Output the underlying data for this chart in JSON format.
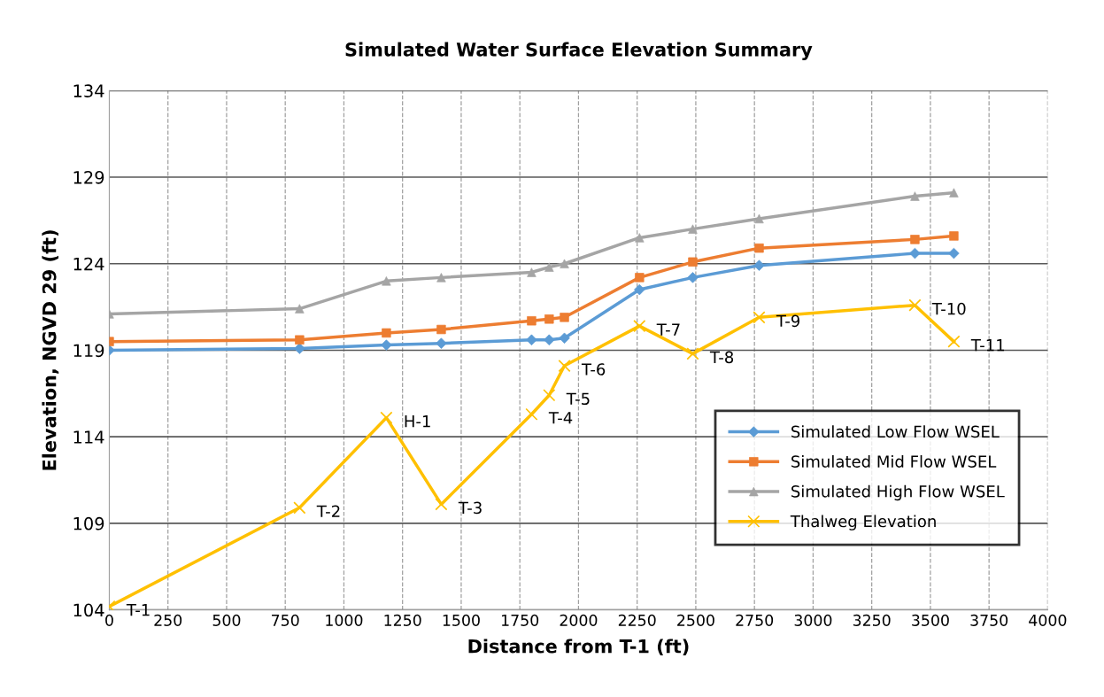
{
  "chart_data": {
    "type": "line",
    "title": "Simulated Water Surface Elevation Summary",
    "xlabel": "Distance from T-1 (ft)",
    "ylabel": "Elevation, NGVD 29 (ft)",
    "x": [
      0,
      811,
      1181,
      1415,
      1800,
      1875,
      1940,
      2260,
      2487,
      2770,
      3434,
      3600
    ],
    "series": [
      {
        "name": "Simulated Low Flow WSEL",
        "color": "#5b9bd5",
        "marker": "diamond",
        "values": [
          119.0,
          119.1,
          119.3,
          119.4,
          119.6,
          119.6,
          119.7,
          122.5,
          123.2,
          123.9,
          124.6,
          124.6
        ]
      },
      {
        "name": "Simulated Mid Flow WSEL",
        "color": "#ed7d31",
        "marker": "square",
        "values": [
          119.5,
          119.6,
          120.0,
          120.2,
          120.7,
          120.8,
          120.9,
          123.2,
          124.1,
          124.9,
          125.4,
          125.6
        ]
      },
      {
        "name": "Simulated High Flow WSEL",
        "color": "#a5a5a5",
        "marker": "triangle",
        "values": [
          121.1,
          121.4,
          123.0,
          123.2,
          123.5,
          123.8,
          124.0,
          125.5,
          126.0,
          126.6,
          127.9,
          128.1
        ]
      },
      {
        "name": "Thalweg Elevation",
        "color": "#ffc000",
        "marker": "cross",
        "values": [
          104.2,
          109.9,
          115.1,
          110.1,
          115.3,
          116.4,
          118.1,
          120.4,
          118.8,
          120.9,
          121.6,
          119.5
        ]
      }
    ],
    "annotations": [
      {
        "text": "T-1",
        "x": 0,
        "y": 104.2
      },
      {
        "text": "T-2",
        "x": 811,
        "y": 109.9
      },
      {
        "text": "H-1",
        "x": 1181,
        "y": 115.1
      },
      {
        "text": "T-3",
        "x": 1415,
        "y": 110.1
      },
      {
        "text": "T-4",
        "x": 1800,
        "y": 115.3
      },
      {
        "text": "T-5",
        "x": 1875,
        "y": 116.4
      },
      {
        "text": "T-6",
        "x": 1940,
        "y": 118.1
      },
      {
        "text": "T-7",
        "x": 2260,
        "y": 120.4
      },
      {
        "text": "T-8",
        "x": 2487,
        "y": 118.8
      },
      {
        "text": "T-9",
        "x": 2770,
        "y": 120.9
      },
      {
        "text": "T-10",
        "x": 3434,
        "y": 121.6
      },
      {
        "text": "T-11",
        "x": 3600,
        "y": 119.5
      }
    ],
    "xlim": [
      0,
      4000
    ],
    "xticks": [
      0,
      250,
      500,
      750,
      1000,
      1250,
      1500,
      1750,
      2000,
      2250,
      2500,
      2750,
      3000,
      3250,
      3500,
      3750,
      4000
    ],
    "ylim": [
      104,
      134
    ],
    "yticks": [
      104,
      109,
      114,
      119,
      124,
      129,
      134
    ],
    "grid": true,
    "legend": "bottom right",
    "line_style": "solid"
  }
}
